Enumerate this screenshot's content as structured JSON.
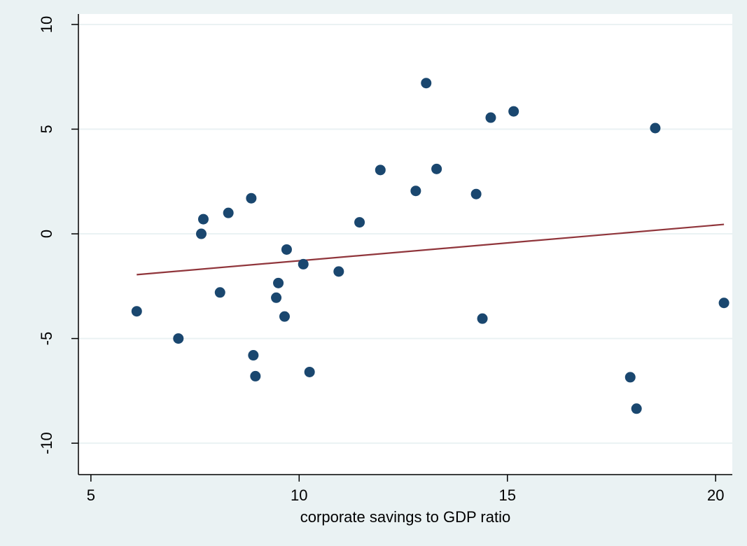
{
  "chart_data": {
    "type": "scatter",
    "title": "",
    "xlabel": "corporate savings to GDP ratio",
    "ylabel": "",
    "xlim": [
      4.7,
      20.4
    ],
    "ylim": [
      -11.5,
      10.5
    ],
    "xticks": [
      5,
      10,
      15,
      20
    ],
    "yticks": [
      -10,
      -5,
      0,
      5,
      10
    ],
    "grid": "horizontal",
    "colors": {
      "background": "#eaf2f3",
      "plot": "#ffffff",
      "grid": "#eaf2f3",
      "points": "#1a476f",
      "fit_line": "#90353b"
    },
    "points": [
      {
        "x": 6.1,
        "y": -3.7
      },
      {
        "x": 7.1,
        "y": -5.0
      },
      {
        "x": 7.65,
        "y": 0.0
      },
      {
        "x": 7.7,
        "y": 0.7
      },
      {
        "x": 8.1,
        "y": -2.8
      },
      {
        "x": 8.3,
        "y": 1.0
      },
      {
        "x": 8.85,
        "y": 1.7
      },
      {
        "x": 8.9,
        "y": -5.8
      },
      {
        "x": 8.95,
        "y": -6.8
      },
      {
        "x": 9.45,
        "y": -3.05
      },
      {
        "x": 9.5,
        "y": -2.35
      },
      {
        "x": 9.65,
        "y": -3.95
      },
      {
        "x": 9.7,
        "y": -0.75
      },
      {
        "x": 10.1,
        "y": -1.45
      },
      {
        "x": 10.25,
        "y": -6.6
      },
      {
        "x": 10.95,
        "y": -1.8
      },
      {
        "x": 11.45,
        "y": 0.55
      },
      {
        "x": 11.95,
        "y": 3.05
      },
      {
        "x": 12.8,
        "y": 2.05
      },
      {
        "x": 13.05,
        "y": 7.2
      },
      {
        "x": 13.3,
        "y": 3.1
      },
      {
        "x": 14.25,
        "y": 1.9
      },
      {
        "x": 14.4,
        "y": -4.05
      },
      {
        "x": 14.6,
        "y": 5.55
      },
      {
        "x": 15.15,
        "y": 5.85
      },
      {
        "x": 17.95,
        "y": -6.85
      },
      {
        "x": 18.1,
        "y": -8.35
      },
      {
        "x": 18.55,
        "y": 5.05
      },
      {
        "x": 20.2,
        "y": -3.3
      }
    ],
    "fit_line": {
      "x": [
        6.1,
        20.2
      ],
      "y": [
        -1.95,
        0.45
      ]
    }
  }
}
